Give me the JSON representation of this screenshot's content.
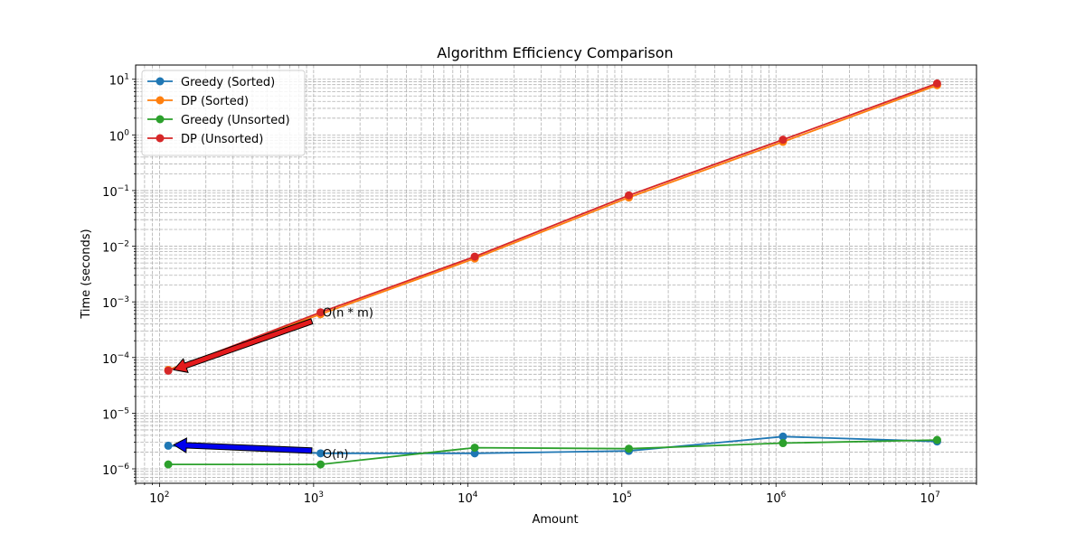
{
  "chart_data": {
    "type": "line",
    "title": "Algorithm Efficiency Comparison",
    "xlabel": "Amount",
    "ylabel": "Time (seconds)",
    "xscale": "log",
    "yscale": "log",
    "xlim": [
      70,
      20000000
    ],
    "ylim": [
      5.5e-07,
      18
    ],
    "x_ticks": [
      100,
      1000,
      10000,
      100000,
      1000000,
      10000000
    ],
    "x_tick_labels": [
      {
        "base": "10",
        "exp": "2"
      },
      {
        "base": "10",
        "exp": "3"
      },
      {
        "base": "10",
        "exp": "4"
      },
      {
        "base": "10",
        "exp": "5"
      },
      {
        "base": "10",
        "exp": "6"
      },
      {
        "base": "10",
        "exp": "7"
      }
    ],
    "y_ticks": [
      1e-06,
      1e-05,
      0.0001,
      0.001,
      0.01,
      0.1,
      1,
      10
    ],
    "y_tick_labels": [
      {
        "base": "10",
        "exp": "−6"
      },
      {
        "base": "10",
        "exp": "−5"
      },
      {
        "base": "10",
        "exp": "−4"
      },
      {
        "base": "10",
        "exp": "−3"
      },
      {
        "base": "10",
        "exp": "−2"
      },
      {
        "base": "10",
        "exp": "−1"
      },
      {
        "base": "10",
        "exp": "0"
      },
      {
        "base": "10",
        "exp": "1"
      }
    ],
    "grid": true,
    "legend_position": "top-left",
    "series": [
      {
        "name": "Greedy (Sorted)",
        "color": "#1f77b4",
        "x": [
          114,
          1110,
          11100,
          111000,
          1110000,
          11100000
        ],
        "y": [
          2.6e-06,
          1.9e-06,
          1.9e-06,
          2.1e-06,
          3.8e-06,
          3.1e-06
        ]
      },
      {
        "name": "DP (Sorted)",
        "color": "#ff7f0e",
        "x": [
          114,
          1110,
          11100,
          111000,
          1110000,
          11100000
        ],
        "y": [
          6e-05,
          0.0006,
          0.006,
          0.075,
          0.75,
          7.8
        ]
      },
      {
        "name": "Greedy (Unsorted)",
        "color": "#2ca02c",
        "x": [
          114,
          1110,
          11100,
          111000,
          1110000,
          11100000
        ],
        "y": [
          1.2e-06,
          1.2e-06,
          2.4e-06,
          2.3e-06,
          2.9e-06,
          3.3e-06
        ]
      },
      {
        "name": "DP (Unsorted)",
        "color": "#d62728",
        "x": [
          114,
          1110,
          11100,
          111000,
          1110000,
          11100000
        ],
        "y": [
          5.8e-05,
          0.00065,
          0.0065,
          0.082,
          0.82,
          8.4
        ]
      }
    ],
    "annotations": [
      {
        "text": "O(n * m)",
        "x": 1000,
        "y": 0.00065,
        "arrow_to": [
          114,
          5.8e-05
        ],
        "arrow_color": "#e31a1c"
      },
      {
        "text": "O(n)",
        "x": 1000,
        "y": 1.9e-06,
        "arrow_to": [
          114,
          2.6e-06
        ],
        "arrow_color": "#0000ee"
      }
    ]
  }
}
